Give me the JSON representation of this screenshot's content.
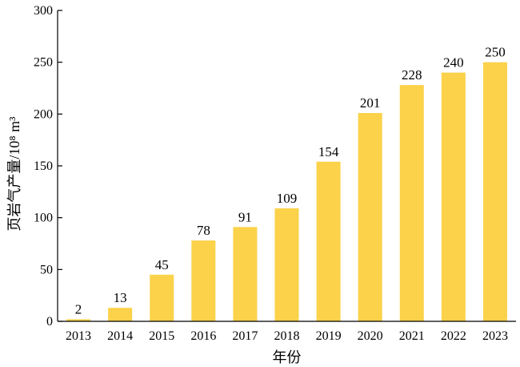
{
  "chart_data": {
    "type": "bar",
    "categories": [
      "2013",
      "2014",
      "2015",
      "2016",
      "2017",
      "2018",
      "2019",
      "2020",
      "2021",
      "2022",
      "2023"
    ],
    "values": [
      2,
      13,
      45,
      78,
      91,
      109,
      154,
      201,
      228,
      240,
      250
    ],
    "title": "",
    "xlabel": "年份",
    "ylabel": "页岩气产量/10⁸ m³",
    "ylim": [
      0,
      300
    ],
    "yticks": [
      0,
      50,
      100,
      150,
      200,
      250,
      300
    ],
    "grid": false,
    "legend": "none",
    "bar_color": "#FBD249",
    "axis_color": "#000000"
  }
}
